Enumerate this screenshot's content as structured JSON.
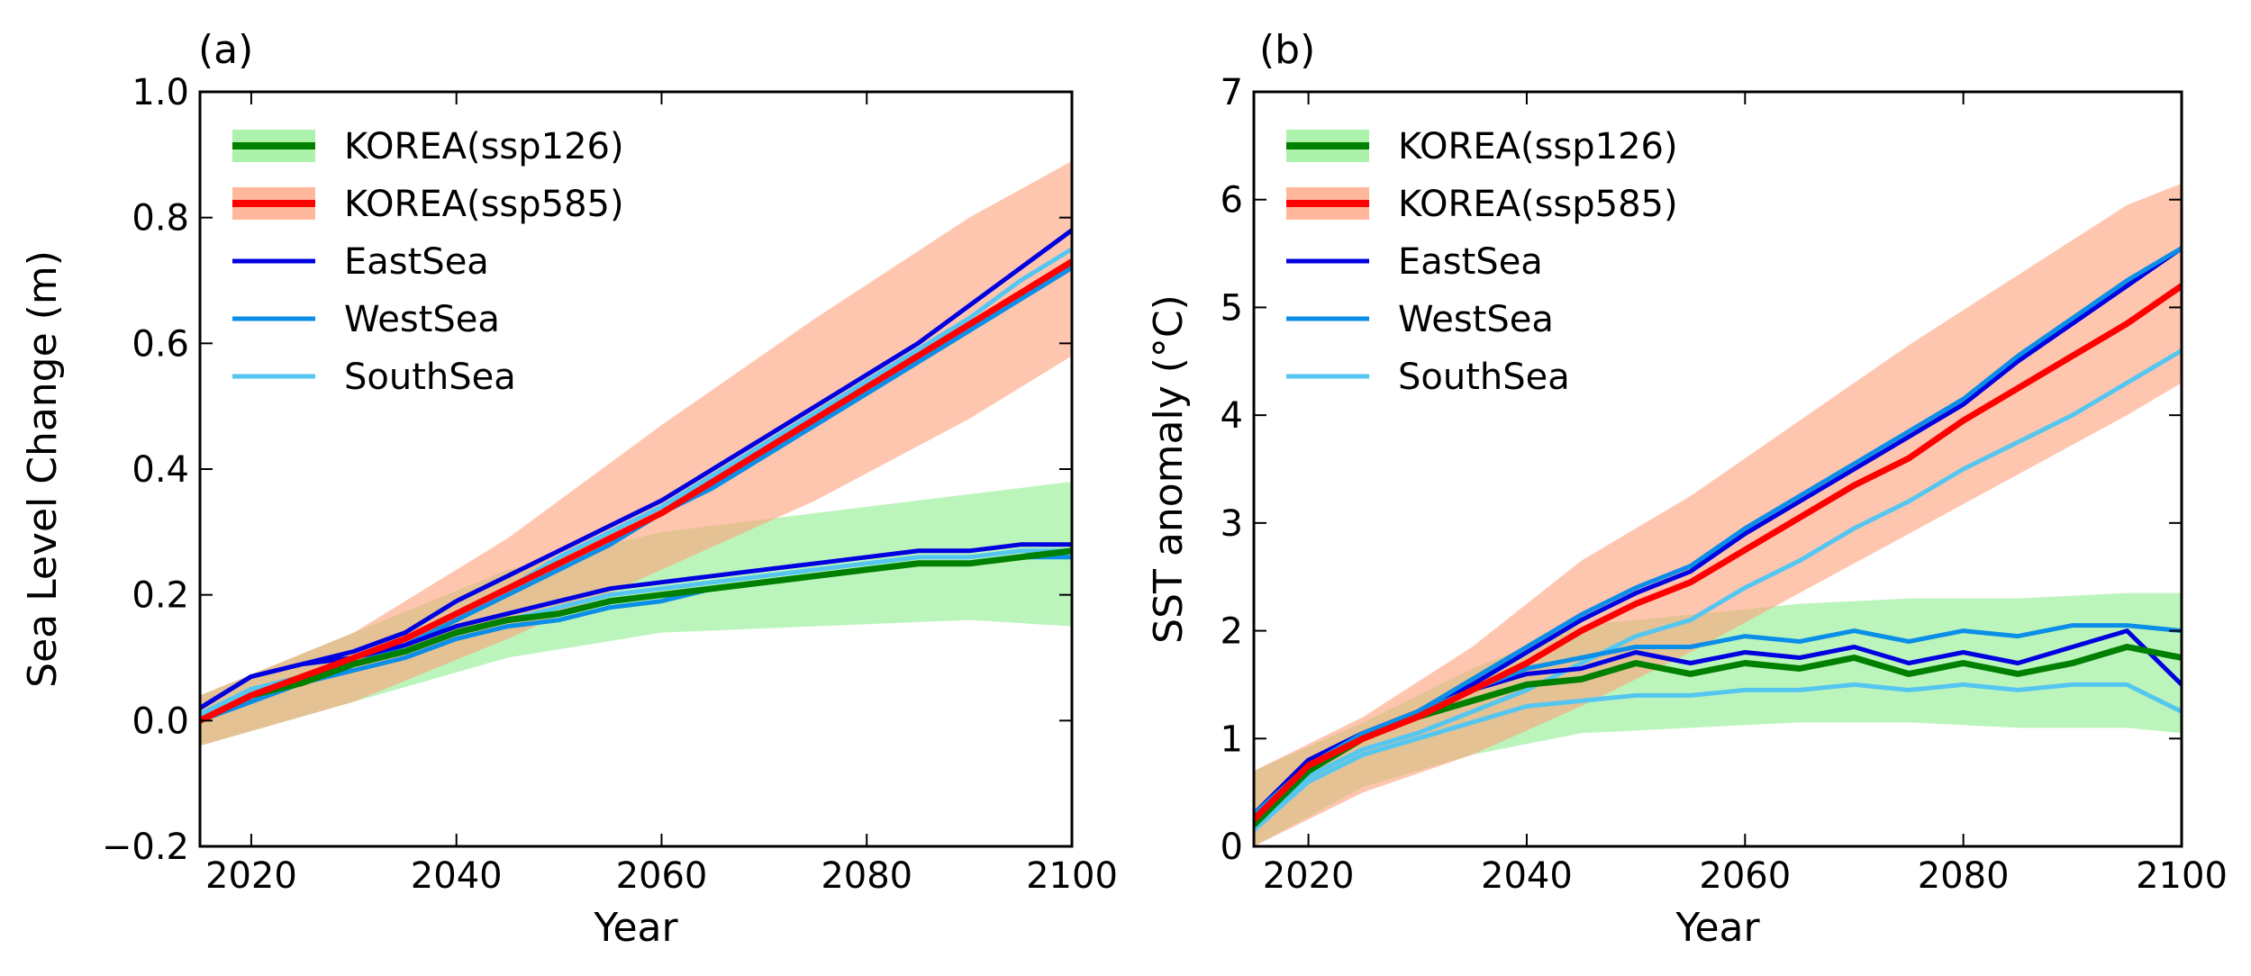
{
  "chart_data": [
    {
      "type": "line",
      "panel_label": "(a)",
      "xlabel": "Year",
      "ylabel": "Sea Level Change (m)",
      "xlim": [
        2015,
        2100
      ],
      "ylim": [
        -0.2,
        1.0
      ],
      "xticks": [
        2020,
        2040,
        2060,
        2080,
        2100
      ],
      "xtick_labels": [
        "2020",
        "2040",
        "2060",
        "2080",
        "2100"
      ],
      "yticks": [
        -0.2,
        0.0,
        0.2,
        0.4,
        0.6,
        0.8,
        1.0
      ],
      "ytick_labels": [
        "−0.2",
        "0.0",
        "0.2",
        "0.4",
        "0.6",
        "0.8",
        "1.0"
      ],
      "legend_position": "top-left",
      "legend": [
        {
          "label": "KOREA(ssp126)",
          "color": "#008000",
          "band_color": "#90ee90"
        },
        {
          "label": "KOREA(ssp585)",
          "color": "#ff0000",
          "band_color": "#ffa07a"
        },
        {
          "label": "EastSea",
          "color": "#0000e0"
        },
        {
          "label": "WestSea",
          "color": "#0b8ee8"
        },
        {
          "label": "SouthSea",
          "color": "#55c6f0"
        }
      ],
      "bands": [
        {
          "name": "KOREA(ssp126) range",
          "color": "#90ee90",
          "x": [
            2015,
            2030,
            2045,
            2060,
            2075,
            2090,
            2100
          ],
          "lower": [
            -0.04,
            0.03,
            0.1,
            0.14,
            0.15,
            0.16,
            0.15
          ],
          "upper": [
            0.04,
            0.14,
            0.24,
            0.3,
            0.33,
            0.36,
            0.38
          ]
        },
        {
          "name": "KOREA(ssp585) range",
          "color": "#ffa07a",
          "x": [
            2015,
            2030,
            2045,
            2060,
            2075,
            2090,
            2100
          ],
          "lower": [
            -0.04,
            0.03,
            0.13,
            0.24,
            0.35,
            0.48,
            0.58
          ],
          "upper": [
            0.04,
            0.14,
            0.29,
            0.47,
            0.64,
            0.8,
            0.89
          ]
        }
      ],
      "series": [
        {
          "name": "KOREA(ssp126)",
          "color": "#008000",
          "x": [
            2015,
            2020,
            2025,
            2030,
            2035,
            2040,
            2045,
            2050,
            2055,
            2060,
            2065,
            2070,
            2075,
            2080,
            2085,
            2090,
            2095,
            2100
          ],
          "values": [
            0.0,
            0.04,
            0.06,
            0.09,
            0.11,
            0.14,
            0.16,
            0.17,
            0.19,
            0.2,
            0.21,
            0.22,
            0.23,
            0.24,
            0.25,
            0.25,
            0.26,
            0.27
          ]
        },
        {
          "name": "KOREA(ssp585)",
          "color": "#ff0000",
          "x": [
            2015,
            2020,
            2025,
            2030,
            2035,
            2040,
            2045,
            2050,
            2055,
            2060,
            2065,
            2070,
            2075,
            2080,
            2085,
            2090,
            2095,
            2100
          ],
          "values": [
            0.0,
            0.04,
            0.07,
            0.1,
            0.13,
            0.17,
            0.21,
            0.25,
            0.29,
            0.33,
            0.38,
            0.43,
            0.48,
            0.53,
            0.58,
            0.63,
            0.68,
            0.73
          ]
        },
        {
          "name": "EastSea (ssp585)",
          "color": "#0000e0",
          "x": [
            2015,
            2020,
            2025,
            2030,
            2035,
            2040,
            2045,
            2050,
            2055,
            2060,
            2065,
            2070,
            2075,
            2080,
            2085,
            2090,
            2095,
            2100
          ],
          "values": [
            0.02,
            0.07,
            0.09,
            0.11,
            0.14,
            0.19,
            0.23,
            0.27,
            0.31,
            0.35,
            0.4,
            0.45,
            0.5,
            0.55,
            0.6,
            0.66,
            0.72,
            0.78
          ]
        },
        {
          "name": "WestSea (ssp585)",
          "color": "#0b8ee8",
          "x": [
            2015,
            2020,
            2025,
            2030,
            2035,
            2040,
            2045,
            2050,
            2055,
            2060,
            2065,
            2070,
            2075,
            2080,
            2085,
            2090,
            2095,
            2100
          ],
          "values": [
            0.0,
            0.03,
            0.06,
            0.09,
            0.12,
            0.16,
            0.2,
            0.24,
            0.28,
            0.33,
            0.37,
            0.42,
            0.47,
            0.52,
            0.57,
            0.62,
            0.67,
            0.72
          ]
        },
        {
          "name": "SouthSea (ssp585)",
          "color": "#55c6f0",
          "x": [
            2015,
            2020,
            2025,
            2030,
            2035,
            2040,
            2045,
            2050,
            2055,
            2060,
            2065,
            2070,
            2075,
            2080,
            2085,
            2090,
            2095,
            2100
          ],
          "values": [
            0.01,
            0.05,
            0.07,
            0.1,
            0.13,
            0.17,
            0.21,
            0.26,
            0.3,
            0.34,
            0.39,
            0.44,
            0.49,
            0.54,
            0.59,
            0.64,
            0.7,
            0.75
          ]
        },
        {
          "name": "EastSea (ssp126)",
          "color": "#0000e0",
          "x": [
            2015,
            2020,
            2025,
            2030,
            2035,
            2040,
            2045,
            2050,
            2055,
            2060,
            2065,
            2070,
            2075,
            2080,
            2085,
            2090,
            2095,
            2100
          ],
          "values": [
            0.02,
            0.07,
            0.09,
            0.1,
            0.12,
            0.15,
            0.17,
            0.19,
            0.21,
            0.22,
            0.23,
            0.24,
            0.25,
            0.26,
            0.27,
            0.27,
            0.28,
            0.28
          ]
        },
        {
          "name": "WestSea (ssp126)",
          "color": "#0b8ee8",
          "x": [
            2015,
            2020,
            2025,
            2030,
            2035,
            2040,
            2045,
            2050,
            2055,
            2060,
            2065,
            2070,
            2075,
            2080,
            2085,
            2090,
            2095,
            2100
          ],
          "values": [
            0.0,
            0.03,
            0.06,
            0.08,
            0.1,
            0.13,
            0.15,
            0.16,
            0.18,
            0.19,
            0.21,
            0.22,
            0.23,
            0.24,
            0.25,
            0.25,
            0.26,
            0.26
          ]
        },
        {
          "name": "SouthSea (ssp126)",
          "color": "#55c6f0",
          "x": [
            2015,
            2020,
            2025,
            2030,
            2035,
            2040,
            2045,
            2050,
            2055,
            2060,
            2065,
            2070,
            2075,
            2080,
            2085,
            2090,
            2095,
            2100
          ],
          "values": [
            0.01,
            0.05,
            0.07,
            0.09,
            0.11,
            0.14,
            0.16,
            0.18,
            0.2,
            0.21,
            0.22,
            0.23,
            0.24,
            0.25,
            0.26,
            0.26,
            0.27,
            0.27
          ]
        }
      ]
    },
    {
      "type": "line",
      "panel_label": "(b)",
      "xlabel": "Year",
      "ylabel": "SST anomaly (°C)",
      "xlim": [
        2015,
        2100
      ],
      "ylim": [
        0,
        7
      ],
      "xticks": [
        2020,
        2040,
        2060,
        2080,
        2100
      ],
      "xtick_labels": [
        "2020",
        "2040",
        "2060",
        "2080",
        "2100"
      ],
      "yticks": [
        0,
        1,
        2,
        3,
        4,
        5,
        6,
        7
      ],
      "ytick_labels": [
        "0",
        "1",
        "2",
        "3",
        "4",
        "5",
        "6",
        "7"
      ],
      "legend_position": "top-left",
      "legend": [
        {
          "label": "KOREA(ssp126)",
          "color": "#008000",
          "band_color": "#90ee90"
        },
        {
          "label": "KOREA(ssp585)",
          "color": "#ff0000",
          "band_color": "#ffa07a"
        },
        {
          "label": "EastSea",
          "color": "#0000e0"
        },
        {
          "label": "WestSea",
          "color": "#0b8ee8"
        },
        {
          "label": "SouthSea",
          "color": "#55c6f0"
        }
      ],
      "bands": [
        {
          "name": "KOREA(ssp126) range",
          "color": "#90ee90",
          "x": [
            2015,
            2025,
            2035,
            2045,
            2055,
            2065,
            2075,
            2085,
            2095,
            2100
          ],
          "lower": [
            0.0,
            0.55,
            0.85,
            1.05,
            1.1,
            1.15,
            1.15,
            1.1,
            1.1,
            1.05
          ],
          "upper": [
            0.7,
            1.15,
            1.65,
            2.05,
            2.15,
            2.25,
            2.3,
            2.3,
            2.35,
            2.35
          ]
        },
        {
          "name": "KOREA(ssp585) range",
          "color": "#ffa07a",
          "x": [
            2015,
            2025,
            2035,
            2045,
            2055,
            2065,
            2075,
            2085,
            2095,
            2100
          ],
          "lower": [
            0.0,
            0.5,
            0.85,
            1.3,
            1.8,
            2.35,
            2.9,
            3.45,
            4.0,
            4.3
          ],
          "upper": [
            0.7,
            1.2,
            1.85,
            2.65,
            3.25,
            3.95,
            4.65,
            5.3,
            5.95,
            6.15
          ]
        }
      ],
      "series": [
        {
          "name": "KOREA(ssp126)",
          "color": "#008000",
          "x": [
            2015,
            2020,
            2025,
            2030,
            2035,
            2040,
            2045,
            2050,
            2055,
            2060,
            2065,
            2070,
            2075,
            2080,
            2085,
            2090,
            2095,
            2100
          ],
          "values": [
            0.2,
            0.7,
            1.0,
            1.2,
            1.35,
            1.5,
            1.55,
            1.7,
            1.6,
            1.7,
            1.65,
            1.75,
            1.6,
            1.7,
            1.6,
            1.7,
            1.85,
            1.75
          ]
        },
        {
          "name": "KOREA(ssp585)",
          "color": "#ff0000",
          "x": [
            2015,
            2020,
            2025,
            2030,
            2035,
            2040,
            2045,
            2050,
            2055,
            2060,
            2065,
            2070,
            2075,
            2080,
            2085,
            2090,
            2095,
            2100
          ],
          "values": [
            0.25,
            0.75,
            1.0,
            1.2,
            1.45,
            1.7,
            2.0,
            2.25,
            2.45,
            2.75,
            3.05,
            3.35,
            3.6,
            3.95,
            4.25,
            4.55,
            4.85,
            5.2
          ]
        },
        {
          "name": "EastSea (ssp585)",
          "color": "#0000e0",
          "x": [
            2015,
            2020,
            2025,
            2030,
            2035,
            2040,
            2045,
            2050,
            2055,
            2060,
            2065,
            2070,
            2075,
            2080,
            2085,
            2090,
            2095,
            2100
          ],
          "values": [
            0.3,
            0.8,
            1.05,
            1.25,
            1.5,
            1.8,
            2.1,
            2.35,
            2.55,
            2.9,
            3.2,
            3.5,
            3.8,
            4.1,
            4.5,
            4.85,
            5.2,
            5.55
          ]
        },
        {
          "name": "WestSea (ssp585)",
          "color": "#0b8ee8",
          "x": [
            2015,
            2020,
            2025,
            2030,
            2035,
            2040,
            2045,
            2050,
            2055,
            2060,
            2065,
            2070,
            2075,
            2080,
            2085,
            2090,
            2095,
            2100
          ],
          "values": [
            0.3,
            0.8,
            1.05,
            1.25,
            1.55,
            1.85,
            2.15,
            2.4,
            2.6,
            2.95,
            3.25,
            3.55,
            3.85,
            4.15,
            4.55,
            4.9,
            5.25,
            5.55
          ]
        },
        {
          "name": "SouthSea (ssp585)",
          "color": "#55c6f0",
          "x": [
            2015,
            2020,
            2025,
            2030,
            2035,
            2040,
            2045,
            2050,
            2055,
            2060,
            2065,
            2070,
            2075,
            2080,
            2085,
            2090,
            2095,
            2100
          ],
          "values": [
            0.2,
            0.65,
            0.9,
            1.05,
            1.25,
            1.45,
            1.7,
            1.95,
            2.1,
            2.4,
            2.65,
            2.95,
            3.2,
            3.5,
            3.75,
            4.0,
            4.3,
            4.6
          ]
        },
        {
          "name": "EastSea (ssp126)",
          "color": "#0000e0",
          "x": [
            2015,
            2020,
            2025,
            2030,
            2035,
            2040,
            2045,
            2050,
            2055,
            2060,
            2065,
            2070,
            2075,
            2080,
            2085,
            2090,
            2095,
            2100
          ],
          "values": [
            0.3,
            0.8,
            1.05,
            1.25,
            1.45,
            1.6,
            1.65,
            1.8,
            1.7,
            1.8,
            1.75,
            1.85,
            1.7,
            1.8,
            1.7,
            1.85,
            2.0,
            1.5
          ]
        },
        {
          "name": "WestSea (ssp126)",
          "color": "#0b8ee8",
          "x": [
            2015,
            2020,
            2025,
            2030,
            2035,
            2040,
            2045,
            2050,
            2055,
            2060,
            2065,
            2070,
            2075,
            2080,
            2085,
            2090,
            2095,
            2100
          ],
          "values": [
            0.3,
            0.75,
            1.05,
            1.25,
            1.45,
            1.65,
            1.75,
            1.85,
            1.85,
            1.95,
            1.9,
            2.0,
            1.9,
            2.0,
            1.95,
            2.05,
            2.05,
            2.0
          ]
        },
        {
          "name": "SouthSea (ssp126)",
          "color": "#55c6f0",
          "x": [
            2015,
            2020,
            2025,
            2030,
            2035,
            2040,
            2045,
            2050,
            2055,
            2060,
            2065,
            2070,
            2075,
            2080,
            2085,
            2090,
            2095,
            2100
          ],
          "values": [
            0.15,
            0.6,
            0.85,
            1.0,
            1.15,
            1.3,
            1.35,
            1.4,
            1.4,
            1.45,
            1.45,
            1.5,
            1.45,
            1.5,
            1.45,
            1.5,
            1.5,
            1.25
          ]
        }
      ]
    }
  ]
}
